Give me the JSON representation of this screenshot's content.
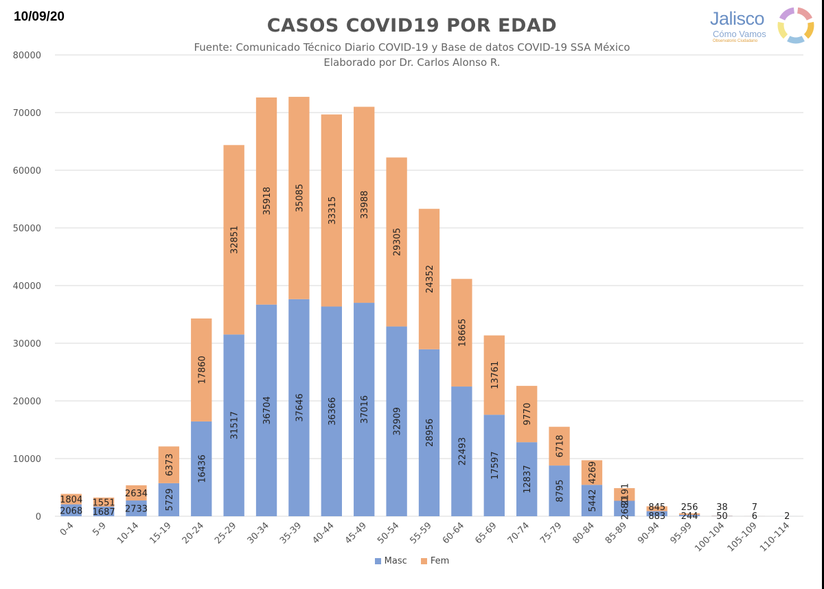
{
  "header": {
    "date": "10/09/20",
    "title": "CASOS COVID19 POR EDAD",
    "subtitle_1": "Fuente: Comunicado Técnico Diario COVID-19 y Base de datos COVID-19 SSA México",
    "subtitle_2": "Elaborado por Dr. Carlos Alonso R."
  },
  "logo": {
    "name": "Jalisco",
    "line2": "Cómo Vamos",
    "line3": "Observatorio Ciudadano",
    "ring_colors": [
      "#e8a0a0",
      "#f2c14e",
      "#9bc4e2",
      "#f4e68a",
      "#c9a0dc"
    ]
  },
  "colors": {
    "masc": "#7f9fd6",
    "fem": "#f0aa78",
    "grid": "#d9d9d9",
    "axis_text": "#555555"
  },
  "legend": {
    "masc": "Masc",
    "fem": "Fem"
  },
  "chart_data": {
    "type": "bar",
    "stacked": true,
    "title": "CASOS COVID19 POR EDAD",
    "xlabel": "",
    "ylabel": "",
    "ylim": [
      0,
      80000
    ],
    "yticks": [
      0,
      10000,
      20000,
      30000,
      40000,
      50000,
      60000,
      70000,
      80000
    ],
    "grid": true,
    "legend_position": "bottom",
    "categories": [
      "0-4",
      "5-9",
      "10-14",
      "15-19",
      "20-24",
      "25-29",
      "30-34",
      "35-39",
      "40-44",
      "45-49",
      "50-54",
      "55-59",
      "60-64",
      "65-69",
      "70-74",
      "75-79",
      "80-84",
      "85-89",
      "90-94",
      "95-99",
      "100-104",
      "105-109",
      "110-114"
    ],
    "series": [
      {
        "name": "Masc",
        "values": [
          2068,
          1687,
          2733,
          5729,
          16436,
          31517,
          36704,
          37646,
          36366,
          37016,
          32909,
          28956,
          22493,
          17597,
          12837,
          8795,
          5442,
          2680,
          883,
          244,
          50,
          6,
          2
        ]
      },
      {
        "name": "Fem",
        "values": [
          1804,
          1551,
          2634,
          6373,
          17860,
          32851,
          35918,
          35085,
          33315,
          33988,
          29305,
          24352,
          18665,
          13761,
          9770,
          6718,
          4269,
          2191,
          845,
          256,
          38,
          7,
          0
        ]
      }
    ]
  }
}
